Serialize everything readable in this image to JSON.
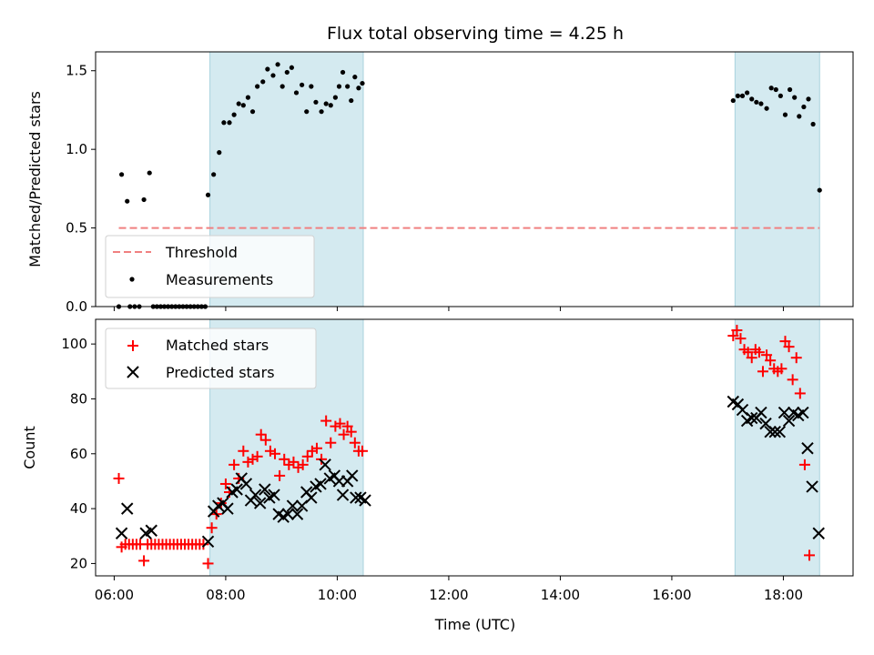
{
  "chart_data": {
    "type": "scatter",
    "title": "Flux total observing time = 4.25 h",
    "xlabel": "Time (UTC)",
    "x_ticks": [
      "06:00",
      "08:00",
      "10:00",
      "12:00",
      "14:00",
      "16:00",
      "18:00"
    ],
    "xlim": [
      "05:40",
      "19:15"
    ],
    "shaded_intervals": [
      [
        "07:43",
        "10:28"
      ],
      [
        "17:08",
        "18:39"
      ]
    ],
    "shade_color": "#d4eaf0",
    "panels": [
      {
        "ylabel": "Matched/Predicted stars",
        "ylim": [
          0,
          1.62
        ],
        "y_ticks": [
          "0.0",
          "0.5",
          "1.0",
          "1.5"
        ],
        "legend_position": "lower-left",
        "threshold": {
          "name": "Threshold",
          "value": 0.5,
          "from": "06:05",
          "to": "18:39",
          "color": "#f08080"
        },
        "series": [
          {
            "name": "Measurements",
            "marker": "dot",
            "color": "#000000",
            "points": [
              [
                "06:05",
                0.0
              ],
              [
                "06:08",
                0.84
              ],
              [
                "06:14",
                0.67
              ],
              [
                "06:17",
                0.0
              ],
              [
                "06:22",
                0.0
              ],
              [
                "06:27",
                0.0
              ],
              [
                "06:32",
                0.68
              ],
              [
                "06:38",
                0.85
              ],
              [
                "06:42",
                0.0
              ],
              [
                "06:46",
                0.0
              ],
              [
                "06:50",
                0.0
              ],
              [
                "06:54",
                0.0
              ],
              [
                "06:58",
                0.0
              ],
              [
                "07:02",
                0.0
              ],
              [
                "07:06",
                0.0
              ],
              [
                "07:10",
                0.0
              ],
              [
                "07:14",
                0.0
              ],
              [
                "07:18",
                0.0
              ],
              [
                "07:22",
                0.0
              ],
              [
                "07:26",
                0.0
              ],
              [
                "07:30",
                0.0
              ],
              [
                "07:34",
                0.0
              ],
              [
                "07:38",
                0.0
              ],
              [
                "07:41",
                0.71
              ],
              [
                "07:47",
                0.84
              ],
              [
                "07:53",
                0.98
              ],
              [
                "07:58",
                1.17
              ],
              [
                "08:04",
                1.17
              ],
              [
                "08:09",
                1.22
              ],
              [
                "08:14",
                1.29
              ],
              [
                "08:19",
                1.28
              ],
              [
                "08:24",
                1.33
              ],
              [
                "08:29",
                1.24
              ],
              [
                "08:34",
                1.4
              ],
              [
                "08:40",
                1.43
              ],
              [
                "08:45",
                1.51
              ],
              [
                "08:51",
                1.47
              ],
              [
                "08:56",
                1.54
              ],
              [
                "09:01",
                1.4
              ],
              [
                "09:06",
                1.49
              ],
              [
                "09:11",
                1.52
              ],
              [
                "09:16",
                1.36
              ],
              [
                "09:22",
                1.41
              ],
              [
                "09:27",
                1.24
              ],
              [
                "09:32",
                1.4
              ],
              [
                "09:37",
                1.3
              ],
              [
                "09:43",
                1.24
              ],
              [
                "09:48",
                1.29
              ],
              [
                "09:53",
                1.28
              ],
              [
                "09:58",
                1.33
              ],
              [
                "10:02",
                1.4
              ],
              [
                "10:06",
                1.49
              ],
              [
                "10:11",
                1.4
              ],
              [
                "10:15",
                1.31
              ],
              [
                "10:19",
                1.46
              ],
              [
                "10:23",
                1.39
              ],
              [
                "10:27",
                1.42
              ],
              [
                "17:06",
                1.31
              ],
              [
                "17:11",
                1.34
              ],
              [
                "17:16",
                1.34
              ],
              [
                "17:21",
                1.36
              ],
              [
                "17:26",
                1.32
              ],
              [
                "17:31",
                1.3
              ],
              [
                "17:36",
                1.29
              ],
              [
                "17:42",
                1.26
              ],
              [
                "17:47",
                1.39
              ],
              [
                "17:52",
                1.38
              ],
              [
                "17:57",
                1.34
              ],
              [
                "18:02",
                1.22
              ],
              [
                "18:07",
                1.38
              ],
              [
                "18:12",
                1.33
              ],
              [
                "18:17",
                1.21
              ],
              [
                "18:22",
                1.27
              ],
              [
                "18:27",
                1.32
              ],
              [
                "18:32",
                1.16
              ],
              [
                "18:39",
                0.74
              ]
            ]
          }
        ]
      },
      {
        "ylabel": "Count",
        "ylim": [
          15.5,
          109
        ],
        "y_ticks": [
          "20",
          "40",
          "60",
          "80",
          "100"
        ],
        "legend_position": "upper-left",
        "series": [
          {
            "name": "Matched stars",
            "marker": "plus",
            "color": "#ff0000",
            "points": [
              [
                "06:05",
                51
              ],
              [
                "06:08",
                26
              ],
              [
                "06:12",
                27
              ],
              [
                "06:16",
                27
              ],
              [
                "06:20",
                27
              ],
              [
                "06:24",
                27
              ],
              [
                "06:28",
                27
              ],
              [
                "06:32",
                21
              ],
              [
                "06:36",
                27
              ],
              [
                "06:40",
                27
              ],
              [
                "06:44",
                27
              ],
              [
                "06:48",
                27
              ],
              [
                "06:52",
                27
              ],
              [
                "06:56",
                27
              ],
              [
                "07:00",
                27
              ],
              [
                "07:04",
                27
              ],
              [
                "07:08",
                27
              ],
              [
                "07:12",
                27
              ],
              [
                "07:16",
                27
              ],
              [
                "07:20",
                27
              ],
              [
                "07:24",
                27
              ],
              [
                "07:28",
                27
              ],
              [
                "07:32",
                27
              ],
              [
                "07:36",
                27
              ],
              [
                "07:41",
                20
              ],
              [
                "07:45",
                33
              ],
              [
                "07:50",
                38
              ],
              [
                "07:55",
                42
              ],
              [
                "08:00",
                49
              ],
              [
                "08:04",
                46
              ],
              [
                "08:09",
                56
              ],
              [
                "08:14",
                51
              ],
              [
                "08:19",
                61
              ],
              [
                "08:24",
                57
              ],
              [
                "08:29",
                58
              ],
              [
                "08:34",
                59
              ],
              [
                "08:38",
                67
              ],
              [
                "08:43",
                65
              ],
              [
                "08:48",
                61
              ],
              [
                "08:53",
                60
              ],
              [
                "08:58",
                52
              ],
              [
                "09:03",
                58
              ],
              [
                "09:08",
                56
              ],
              [
                "09:13",
                57
              ],
              [
                "09:18",
                55
              ],
              [
                "09:23",
                56
              ],
              [
                "09:28",
                59
              ],
              [
                "09:33",
                61
              ],
              [
                "09:38",
                62
              ],
              [
                "09:43",
                58
              ],
              [
                "09:48",
                72
              ],
              [
                "09:53",
                64
              ],
              [
                "09:58",
                70
              ],
              [
                "10:03",
                71
              ],
              [
                "10:07",
                67
              ],
              [
                "10:11",
                70
              ],
              [
                "10:15",
                68
              ],
              [
                "10:19",
                64
              ],
              [
                "10:23",
                61
              ],
              [
                "10:27",
                61
              ],
              [
                "17:06",
                103
              ],
              [
                "17:10",
                105
              ],
              [
                "17:14",
                102
              ],
              [
                "17:18",
                98
              ],
              [
                "17:22",
                97
              ],
              [
                "17:26",
                95
              ],
              [
                "17:30",
                98
              ],
              [
                "17:34",
                97
              ],
              [
                "17:38",
                90
              ],
              [
                "17:42",
                96
              ],
              [
                "17:46",
                94
              ],
              [
                "17:50",
                91
              ],
              [
                "17:54",
                90
              ],
              [
                "17:58",
                91
              ],
              [
                "18:02",
                101
              ],
              [
                "18:06",
                99
              ],
              [
                "18:10",
                87
              ],
              [
                "18:14",
                95
              ],
              [
                "18:18",
                82
              ],
              [
                "18:23",
                56
              ],
              [
                "18:28",
                23
              ]
            ]
          },
          {
            "name": "Predicted stars",
            "marker": "cross",
            "color": "#000000",
            "points": [
              [
                "06:08",
                31
              ],
              [
                "06:14",
                40
              ],
              [
                "06:34",
                31
              ],
              [
                "06:40",
                32
              ],
              [
                "07:41",
                28
              ],
              [
                "07:47",
                39
              ],
              [
                "07:52",
                41
              ],
              [
                "07:57",
                42
              ],
              [
                "08:02",
                40
              ],
              [
                "08:07",
                46
              ],
              [
                "08:12",
                47
              ],
              [
                "08:17",
                51
              ],
              [
                "08:22",
                49
              ],
              [
                "08:27",
                43
              ],
              [
                "08:32",
                45
              ],
              [
                "08:37",
                42
              ],
              [
                "08:42",
                47
              ],
              [
                "08:47",
                44
              ],
              [
                "08:52",
                45
              ],
              [
                "08:57",
                38
              ],
              [
                "09:02",
                37
              ],
              [
                "09:07",
                38
              ],
              [
                "09:12",
                41
              ],
              [
                "09:17",
                38
              ],
              [
                "09:22",
                41
              ],
              [
                "09:27",
                46
              ],
              [
                "09:32",
                44
              ],
              [
                "09:37",
                48
              ],
              [
                "09:42",
                49
              ],
              [
                "09:47",
                56
              ],
              [
                "09:52",
                51
              ],
              [
                "09:57",
                52
              ],
              [
                "10:02",
                50
              ],
              [
                "10:06",
                45
              ],
              [
                "10:11",
                50
              ],
              [
                "10:16",
                52
              ],
              [
                "10:20",
                44
              ],
              [
                "10:25",
                44
              ],
              [
                "10:30",
                43
              ],
              [
                "17:06",
                79
              ],
              [
                "17:11",
                78
              ],
              [
                "17:16",
                76
              ],
              [
                "17:21",
                72
              ],
              [
                "17:26",
                73
              ],
              [
                "17:31",
                73
              ],
              [
                "17:36",
                75
              ],
              [
                "17:41",
                71
              ],
              [
                "17:46",
                68
              ],
              [
                "17:51",
                68
              ],
              [
                "17:56",
                68
              ],
              [
                "18:01",
                75
              ],
              [
                "18:06",
                72
              ],
              [
                "18:11",
                75
              ],
              [
                "18:16",
                74
              ],
              [
                "18:21",
                75
              ],
              [
                "18:26",
                62
              ],
              [
                "18:31",
                48
              ],
              [
                "18:38",
                31
              ]
            ]
          }
        ]
      }
    ]
  }
}
